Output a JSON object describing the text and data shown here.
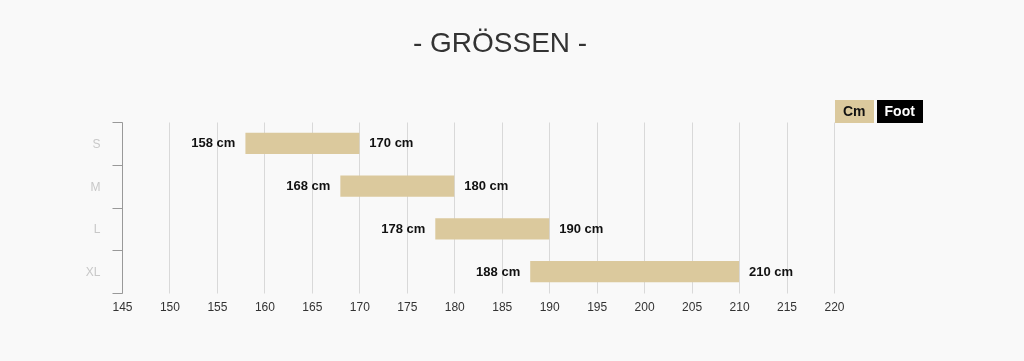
{
  "chart_data": {
    "type": "bar",
    "orientation": "horizontal",
    "title": "- GRÖSSEN -",
    "categories": [
      "S",
      "M",
      "L",
      "XL"
    ],
    "base": [
      158,
      168,
      178,
      188
    ],
    "values": [
      12,
      12,
      12,
      22
    ],
    "color": "#dbc99d",
    "xlim": [
      145,
      220
    ],
    "xticks": [
      145,
      150,
      155,
      160,
      165,
      170,
      175,
      180,
      185,
      190,
      195,
      200,
      205,
      210,
      215,
      220
    ],
    "grid": "x",
    "annotations": [
      {
        "text": "158 cm",
        "x": 158,
        "y": "S"
      },
      {
        "text": "170 cm",
        "x": 170,
        "y": "S"
      },
      {
        "text": "168 cm",
        "x": 168,
        "y": "M"
      },
      {
        "text": "180 cm",
        "x": 180,
        "y": "M"
      },
      {
        "text": "178 cm",
        "x": 178,
        "y": "L"
      },
      {
        "text": "190 cm",
        "x": 190,
        "y": "L"
      },
      {
        "text": "188 cm",
        "x": 188,
        "y": "XL"
      },
      {
        "text": "210 cm",
        "x": 210,
        "y": "XL"
      },
      "Cm",
      "Foot"
    ]
  }
}
